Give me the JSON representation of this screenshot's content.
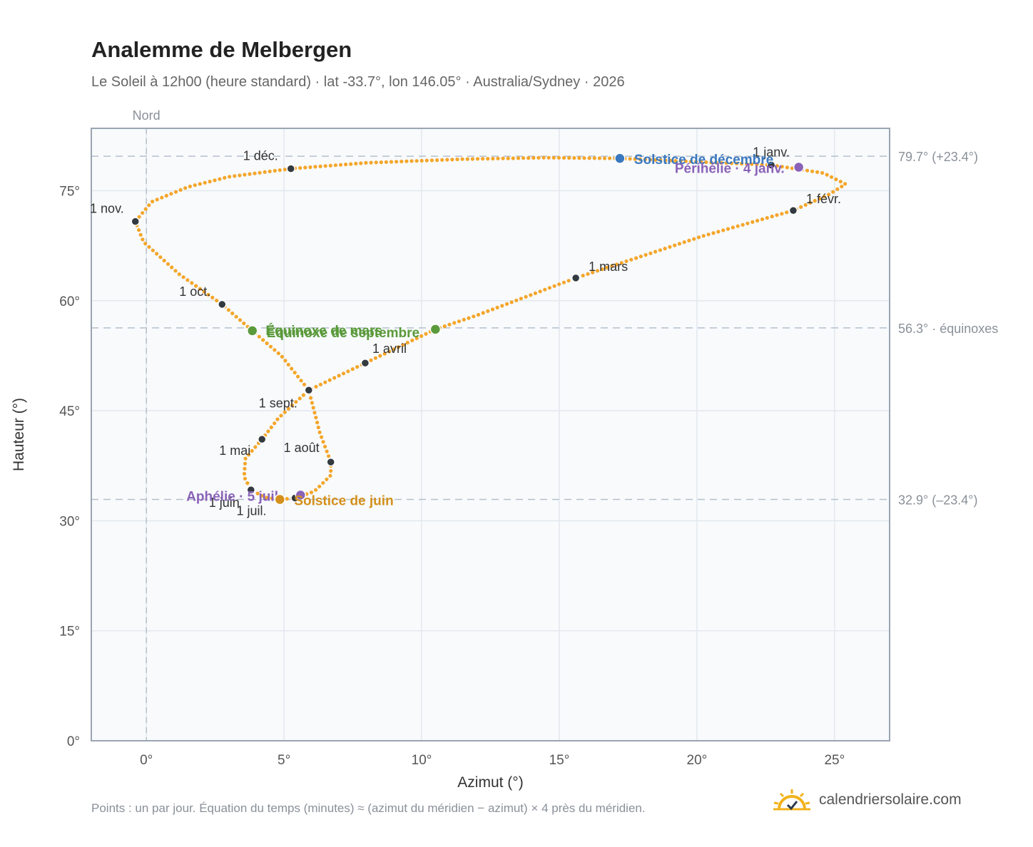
{
  "title": "Analemme de Melbergen",
  "subtitle": "Le Soleil à 12h00 (heure standard) · lat -33.7°, lon 146.05° · Australia/Sydney · 2026",
  "footnote": "Points : un par jour. Équation du temps (minutes) ≈ (azimut du méridien − azimut) × 4 près du méridien.",
  "brand": {
    "name": "calendriersolaire.com",
    "icon": "sun-logo-icon"
  },
  "colors": {
    "curve": "#f4a62a",
    "month_marker": "#333a40",
    "equinox": "#5a9a3b",
    "solstice_dec": "#3b78c0",
    "solstice_jun": "#d4901c",
    "apsis": "#8a63b8",
    "grid": "#e3e8ee",
    "plot_bg": "#f8fafc",
    "reference": "#b5c0cb"
  },
  "chart_data": {
    "type": "scatter",
    "title": "Analemme de Melbergen",
    "xlabel": "Azimut (°)",
    "ylabel": "Hauteur (°)",
    "xlim": [
      -2,
      27
    ],
    "ylim": [
      0,
      83.5
    ],
    "xticks": [
      0,
      5,
      10,
      15,
      20,
      25
    ],
    "yticks": [
      0,
      15,
      30,
      45,
      60,
      75
    ],
    "tick_suffix": "°",
    "grid": true,
    "north_line": {
      "x": 0,
      "label": "Nord"
    },
    "reference_lines": [
      {
        "y": 79.7,
        "label": "79.7° (+23.4°)"
      },
      {
        "y": 56.3,
        "label": "56.3° · équinoxes"
      },
      {
        "y": 32.9,
        "label": "32.9° (–23.4°)"
      }
    ],
    "month_markers": [
      {
        "label": "1 janv.",
        "x": 22.7,
        "y": 78.5
      },
      {
        "label": "1 févr.",
        "x": 23.5,
        "y": 72.3
      },
      {
        "label": "1 mars",
        "x": 15.6,
        "y": 63.1
      },
      {
        "label": "1 avril",
        "x": 7.95,
        "y": 51.5
      },
      {
        "label": "1 mai",
        "x": 4.2,
        "y": 41.1
      },
      {
        "label": "1 juin",
        "x": 3.8,
        "y": 34.2
      },
      {
        "label": "1 juil.",
        "x": 5.4,
        "y": 33.1
      },
      {
        "label": "1 août",
        "x": 6.7,
        "y": 38.0
      },
      {
        "label": "1 sept.",
        "x": 5.9,
        "y": 47.8
      },
      {
        "label": "1 oct.",
        "x": 2.75,
        "y": 59.5
      },
      {
        "label": "1 nov.",
        "x": -0.4,
        "y": 70.8
      },
      {
        "label": "1 déc.",
        "x": 5.25,
        "y": 78.0
      }
    ],
    "events": [
      {
        "label": "Solstice de décembre",
        "x": 17.2,
        "y": 79.4,
        "kind": "solstice_dec"
      },
      {
        "label": "Périhélie · 4 janv.",
        "x": 23.7,
        "y": 78.2,
        "kind": "apsis"
      },
      {
        "label": "Équinoxe de mars",
        "x": 10.5,
        "y": 56.1,
        "kind": "equinox"
      },
      {
        "label": "Équinoxe de septembre",
        "x": 3.85,
        "y": 55.9,
        "kind": "equinox"
      },
      {
        "label": "Aphélie · 5 juil.",
        "x": 5.6,
        "y": 33.5,
        "kind": "apsis"
      },
      {
        "label": "Solstice de juin",
        "x": 4.85,
        "y": 32.9,
        "kind": "solstice_jun"
      }
    ],
    "path": [
      [
        17.2,
        79.4
      ],
      [
        22.7,
        78.5
      ],
      [
        24.6,
        77.4
      ],
      [
        25.4,
        75.9
      ],
      [
        24.8,
        74.5
      ],
      [
        23.5,
        72.3
      ],
      [
        20.2,
        68.8
      ],
      [
        15.6,
        63.1
      ],
      [
        12.0,
        58.0
      ],
      [
        10.5,
        56.1
      ],
      [
        7.95,
        51.5
      ],
      [
        5.9,
        47.8
      ],
      [
        4.8,
        44.0
      ],
      [
        4.2,
        41.1
      ],
      [
        3.6,
        38.5
      ],
      [
        3.55,
        36.0
      ],
      [
        3.8,
        34.2
      ],
      [
        4.3,
        33.2
      ],
      [
        4.85,
        32.9
      ],
      [
        5.4,
        33.1
      ],
      [
        6.1,
        34.0
      ],
      [
        6.7,
        36.2
      ],
      [
        6.7,
        38.0
      ],
      [
        6.3,
        42.0
      ],
      [
        5.9,
        47.8
      ],
      [
        4.9,
        52.5
      ],
      [
        3.85,
        55.9
      ],
      [
        2.75,
        59.5
      ],
      [
        1.2,
        63.6
      ],
      [
        -0.1,
        68.0
      ],
      [
        -0.4,
        70.8
      ],
      [
        0.2,
        73.5
      ],
      [
        1.5,
        75.5
      ],
      [
        3.0,
        76.9
      ],
      [
        5.25,
        78.0
      ],
      [
        8.0,
        78.8
      ],
      [
        11.5,
        79.3
      ],
      [
        14.5,
        79.5
      ],
      [
        17.2,
        79.4
      ]
    ]
  }
}
